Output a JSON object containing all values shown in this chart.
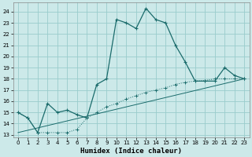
{
  "title": "",
  "xlabel": "Humidex (Indice chaleur)",
  "background_color": "#cce9e9",
  "grid_color": "#99cccc",
  "line_color": "#1a6b6b",
  "xlim": [
    -0.5,
    23.5
  ],
  "ylim": [
    12.8,
    24.8
  ],
  "yticks": [
    13,
    14,
    15,
    16,
    17,
    18,
    19,
    20,
    21,
    22,
    23,
    24
  ],
  "xticks": [
    0,
    1,
    2,
    3,
    4,
    5,
    6,
    7,
    8,
    9,
    10,
    11,
    12,
    13,
    14,
    15,
    16,
    17,
    18,
    19,
    20,
    21,
    22,
    23
  ],
  "series1_x": [
    0,
    1,
    2,
    3,
    4,
    5,
    6,
    7,
    8,
    9,
    10,
    11,
    12,
    13,
    14,
    15,
    16,
    17,
    18,
    19,
    20,
    21,
    22,
    23
  ],
  "series1_y": [
    15.0,
    14.5,
    13.2,
    15.8,
    15.0,
    15.2,
    14.8,
    14.5,
    17.5,
    18.0,
    23.3,
    23.0,
    22.5,
    24.3,
    23.3,
    23.0,
    21.0,
    19.5,
    17.8,
    17.8,
    17.8,
    19.0,
    18.3,
    18.0
  ],
  "series2_x": [
    0,
    1,
    2,
    3,
    4,
    5,
    6,
    7,
    8,
    9,
    10,
    11,
    12,
    13,
    14,
    15,
    16,
    17,
    18,
    19,
    20,
    21,
    22,
    23
  ],
  "series2_y": [
    15.0,
    14.5,
    13.2,
    13.2,
    13.2,
    13.2,
    13.5,
    14.5,
    15.0,
    15.5,
    15.8,
    16.2,
    16.5,
    16.8,
    17.0,
    17.2,
    17.5,
    17.7,
    17.8,
    17.85,
    18.0,
    18.0,
    18.0,
    18.0
  ],
  "series3_x": [
    0,
    23
  ],
  "series3_y": [
    13.2,
    18.0
  ],
  "ticksize": 5,
  "xlabel_fontsize": 6.5
}
